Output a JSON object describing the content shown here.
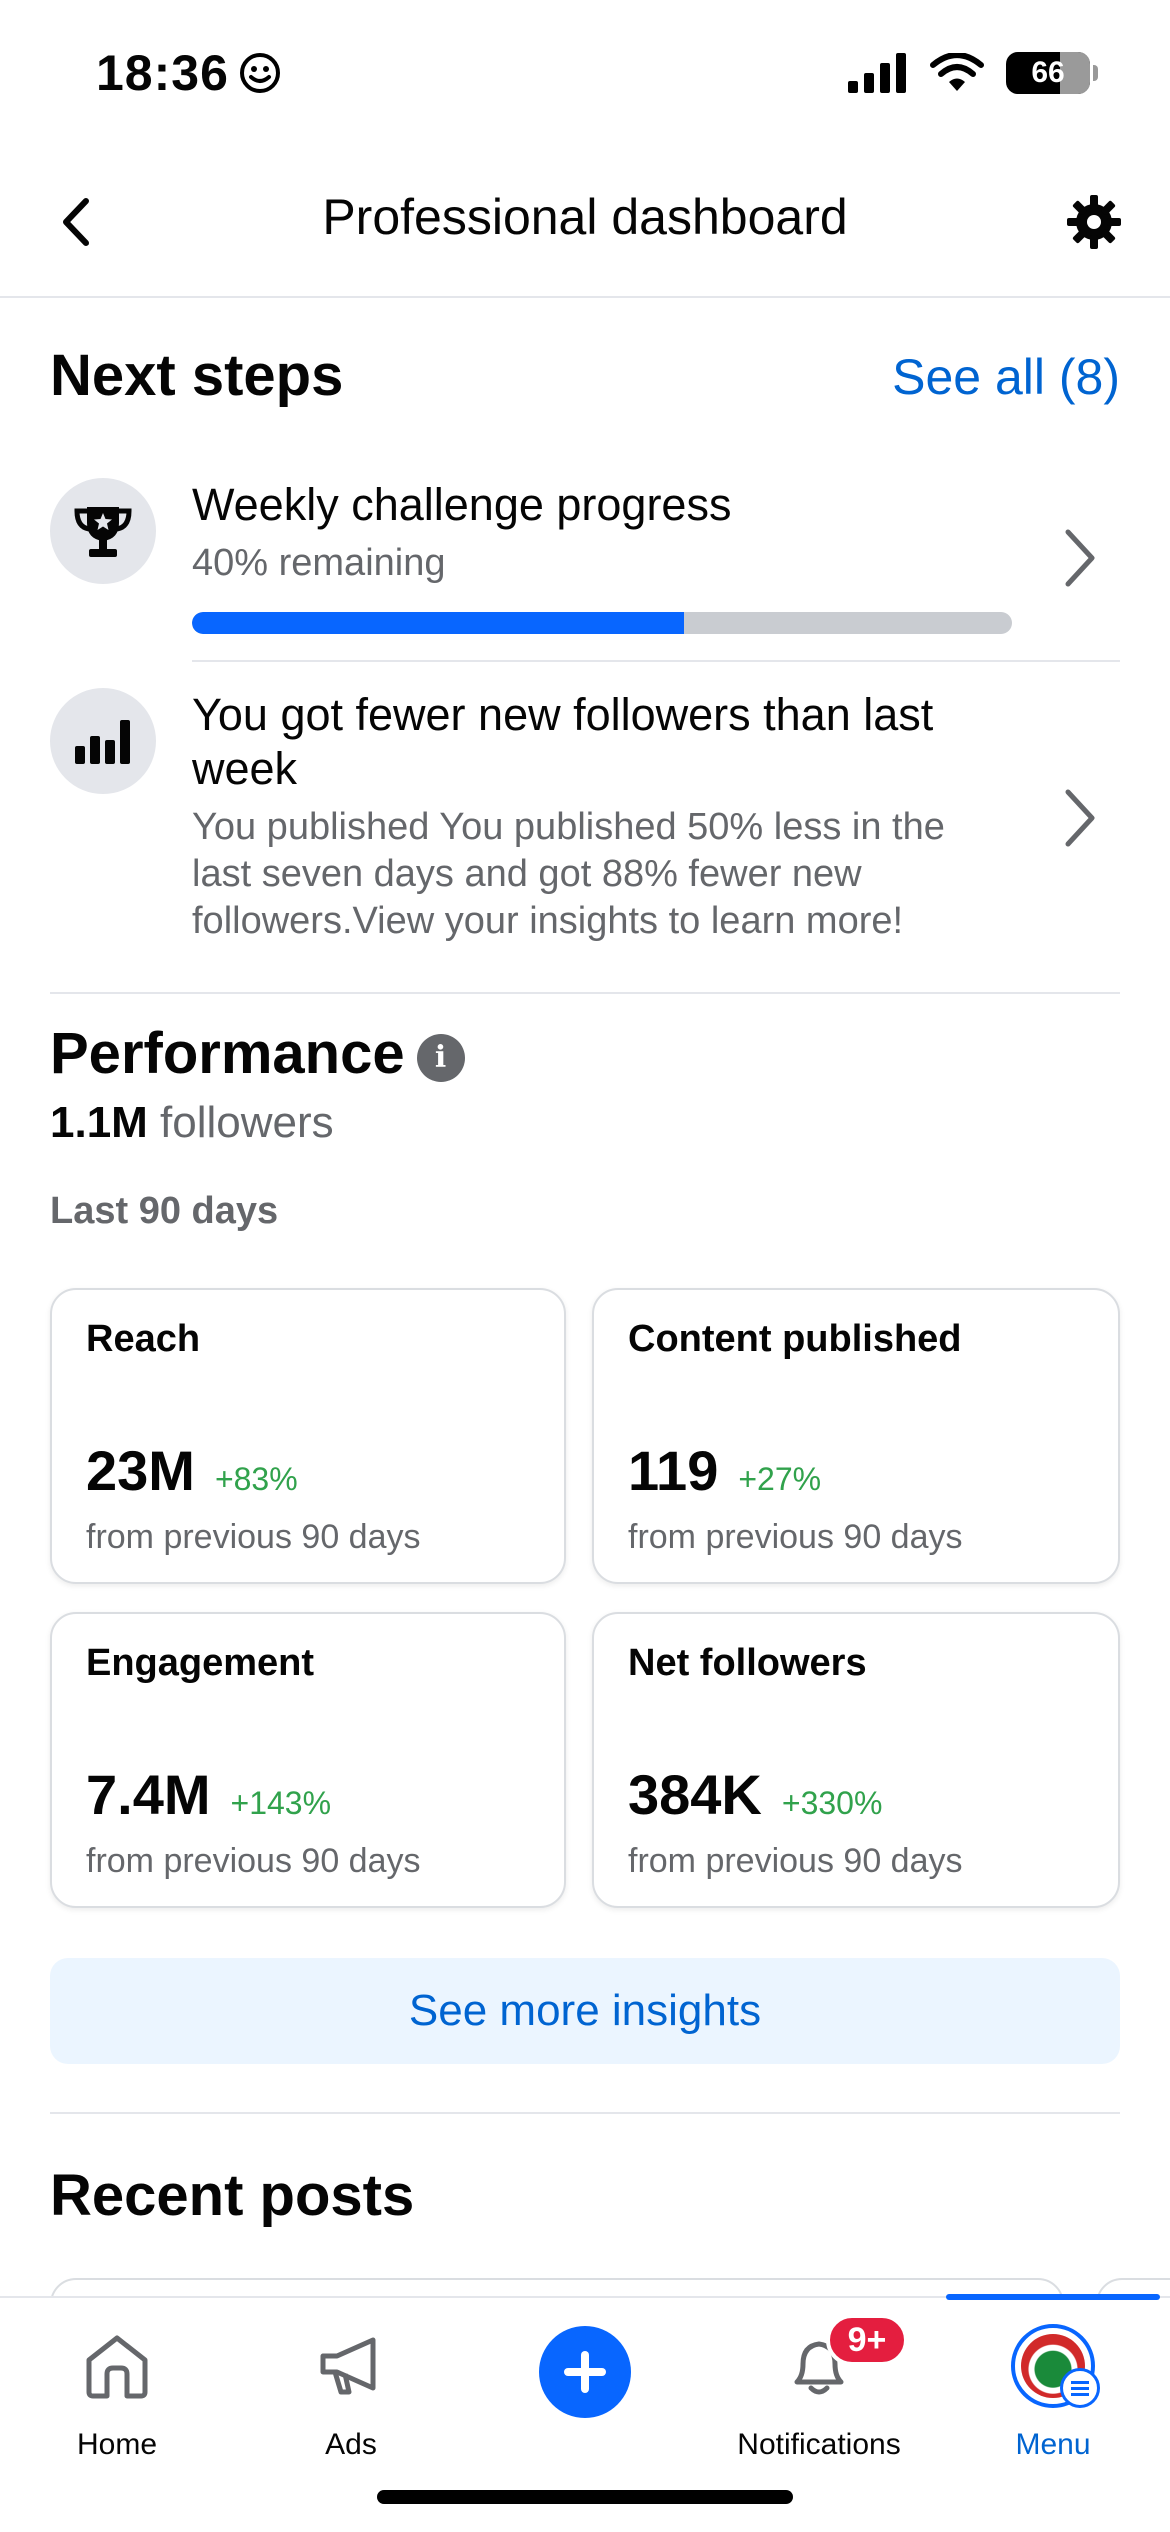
{
  "status_bar": {
    "time": "18:36",
    "battery": "66"
  },
  "header": {
    "title": "Professional dashboard"
  },
  "next_steps": {
    "title": "Next steps",
    "see_all": "See all (8)",
    "items": [
      {
        "title": "Weekly challenge progress",
        "subtitle": "40% remaining",
        "progress": 0.6,
        "icon": "trophy-icon"
      },
      {
        "title": "You got fewer new followers than last week",
        "subtitle": "You published You published 50% less in the last seven days and got 88% fewer new followers.View your insights to learn more!",
        "icon": "bar-chart-icon"
      }
    ]
  },
  "performance": {
    "title": "Performance",
    "followers_count": "1.1M",
    "followers_label": " followers",
    "period": "Last 90 days",
    "cards": [
      {
        "label": "Reach",
        "value": "23M",
        "delta": "+83%",
        "note": "from previous 90 days"
      },
      {
        "label": "Content published",
        "value": "119",
        "delta": "+27%",
        "note": "from previous 90 days"
      },
      {
        "label": "Engagement",
        "value": "7.4M",
        "delta": "+143%",
        "note": "from previous 90 days"
      },
      {
        "label": "Net followers",
        "value": "384K",
        "delta": "+330%",
        "note": "from previous 90 days"
      }
    ],
    "insights_button": "See more insights"
  },
  "recent_posts": {
    "title": "Recent posts"
  },
  "bottom_nav": {
    "items": [
      {
        "label": "Home",
        "icon": "home-icon"
      },
      {
        "label": "Ads",
        "icon": "megaphone-icon"
      },
      {
        "label": "",
        "icon": "plus-icon"
      },
      {
        "label": "Notifications",
        "icon": "bell-icon",
        "badge": "9+"
      },
      {
        "label": "Menu",
        "icon": "avatar",
        "active": true
      }
    ]
  },
  "colors": {
    "accent": "#0866ff",
    "link": "#0064d1",
    "positive": "#31a24c",
    "badge": "#e41e3f"
  }
}
